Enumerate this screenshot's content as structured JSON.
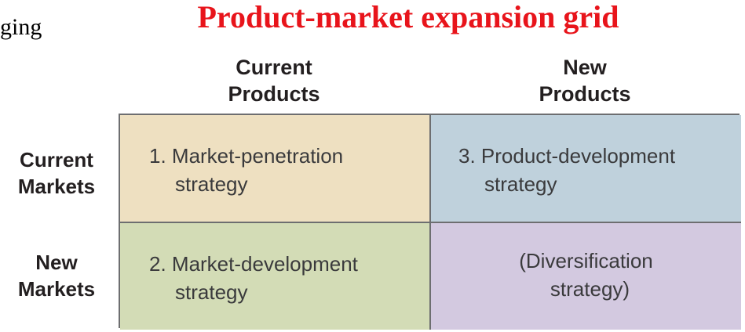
{
  "colors": {
    "title": "#e8141b",
    "cell_current_current": "#eee0c1",
    "cell_current_new": "#bfd1dc",
    "cell_new_current": "#d3dcb6",
    "cell_new_new": "#d3c9e0"
  },
  "fragment_text": "ging",
  "title": "Product-market expansion grid",
  "columns": [
    {
      "line1": "Current",
      "line2": "Products"
    },
    {
      "line1": "New",
      "line2": "Products"
    }
  ],
  "rows": [
    {
      "line1": "Current",
      "line2": "Markets"
    },
    {
      "line1": "New",
      "line2": "Markets"
    }
  ],
  "cells": {
    "market_penetration": {
      "line1": "1. Market-penetration",
      "line2": "strategy"
    },
    "product_development": {
      "line1": "3. Product-development",
      "line2": "strategy"
    },
    "market_development": {
      "line1": "2. Market-development",
      "line2": "strategy"
    },
    "diversification": {
      "line1": "(Diversification",
      "line2": "strategy)"
    }
  }
}
